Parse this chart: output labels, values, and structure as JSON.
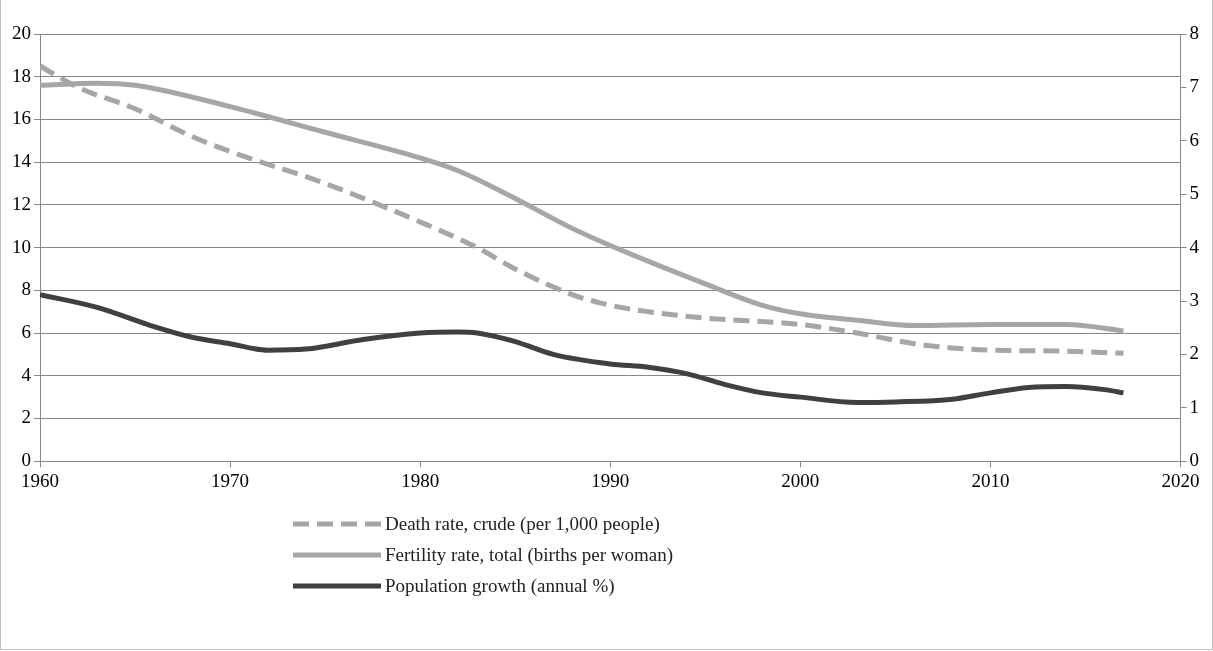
{
  "chart_data": {
    "type": "line",
    "xlim": [
      1960,
      2020
    ],
    "xticks": [
      1960,
      1970,
      1980,
      1990,
      2000,
      2010,
      2020
    ],
    "ylim": [
      0,
      20
    ],
    "yticks": [
      0,
      2,
      4,
      6,
      8,
      10,
      12,
      14,
      16,
      18,
      20
    ],
    "y2lim": [
      0,
      8
    ],
    "y2ticks": [
      0,
      1,
      2,
      3,
      4,
      5,
      6,
      7,
      8
    ],
    "grid": "y",
    "legend": "bottom",
    "series": [
      {
        "name": "Death rate, crude (per 1,000 people)",
        "color": "#a6a6a6",
        "line_style": "dashed",
        "x": [
          1960,
          1962,
          1965,
          1968,
          1970,
          1975,
          1980,
          1983,
          1985,
          1988,
          1990,
          1992,
          1995,
          2000,
          2003,
          2006,
          2008,
          2010,
          2014,
          2017
        ],
        "values": [
          18.5,
          17.5,
          16.5,
          15.2,
          14.5,
          13,
          11.2,
          10,
          9,
          7.8,
          7.3,
          7.0,
          6.7,
          6.4,
          6.0,
          5.5,
          5.3,
          5.2,
          5.15,
          5.05
        ]
      },
      {
        "name": "Fertility rate, total (births per woman)",
        "color": "#a6a6a6",
        "line_style": "solid",
        "axis": "y2",
        "x": [
          1960,
          1963,
          1965,
          1970,
          1975,
          1980,
          1982,
          1985,
          1988,
          1990,
          1995,
          1998,
          2000,
          2003,
          2006,
          2010,
          2014,
          2017
        ],
        "values": [
          7.04,
          7.08,
          7.04,
          6.64,
          6.16,
          5.68,
          5.44,
          4.92,
          4.36,
          4.04,
          3.32,
          2.92,
          2.76,
          2.64,
          2.54,
          2.56,
          2.56,
          2.44
        ]
      },
      {
        "name": "Population growth (annual %)",
        "color": "#404040",
        "line_style": "solid",
        "axis": "y2",
        "x": [
          1960,
          1963,
          1966,
          1968,
          1970,
          1972,
          1974,
          1977,
          1980,
          1982,
          1983,
          1985,
          1987,
          1990,
          1992,
          1994,
          1996,
          1998,
          2000,
          2003,
          2005,
          2008,
          2010,
          2012,
          2014,
          2016,
          2017
        ],
        "values": [
          3.12,
          2.88,
          2.52,
          2.32,
          2.2,
          2.08,
          2.1,
          2.28,
          2.4,
          2.42,
          2.4,
          2.24,
          2.0,
          1.82,
          1.76,
          1.64,
          1.44,
          1.28,
          1.2,
          1.1,
          1.11,
          1.16,
          1.28,
          1.38,
          1.4,
          1.34,
          1.28
        ]
      }
    ]
  }
}
